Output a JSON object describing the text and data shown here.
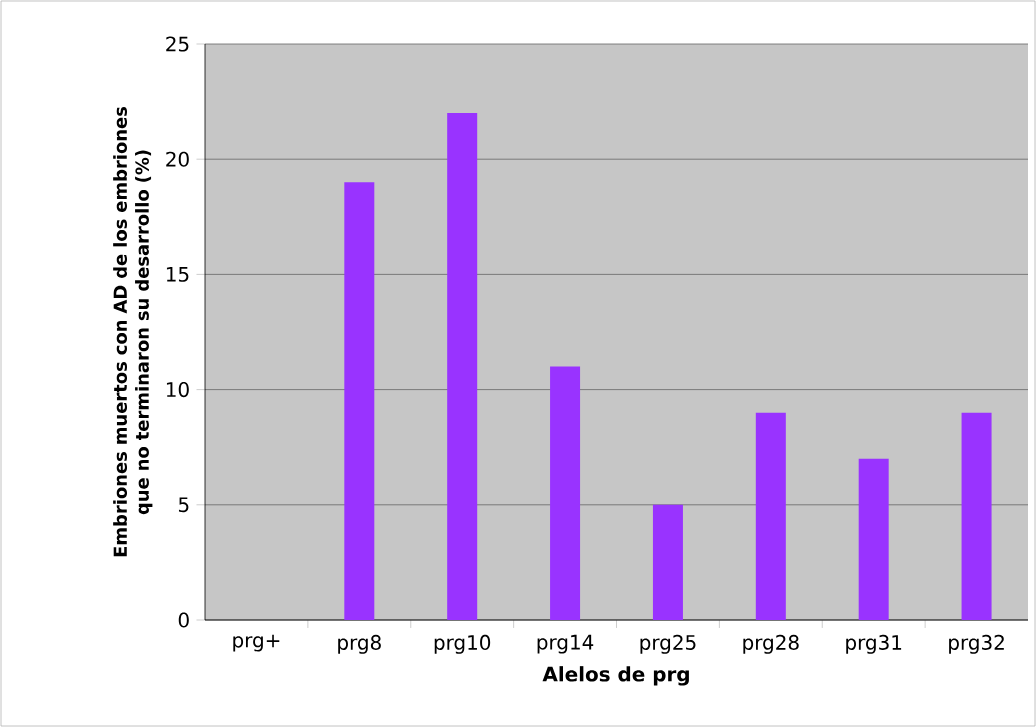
{
  "chart_data": {
    "type": "bar",
    "xlabel": "Alelos de prg",
    "ylabel": "Embriones muertos con AD de los embriones que no terminaron su desarrollo (%)",
    "categories": [
      "prg+",
      "prg8",
      "prg10",
      "prg14",
      "prg25",
      "prg28",
      "prg31",
      "prg32"
    ],
    "values": [
      0,
      19,
      22,
      11,
      5,
      9,
      7,
      9
    ],
    "color": "#9933ff",
    "ylim": [
      0,
      25
    ],
    "yticks": [
      0,
      5,
      10,
      15,
      20,
      25
    ],
    "grid": "y"
  }
}
